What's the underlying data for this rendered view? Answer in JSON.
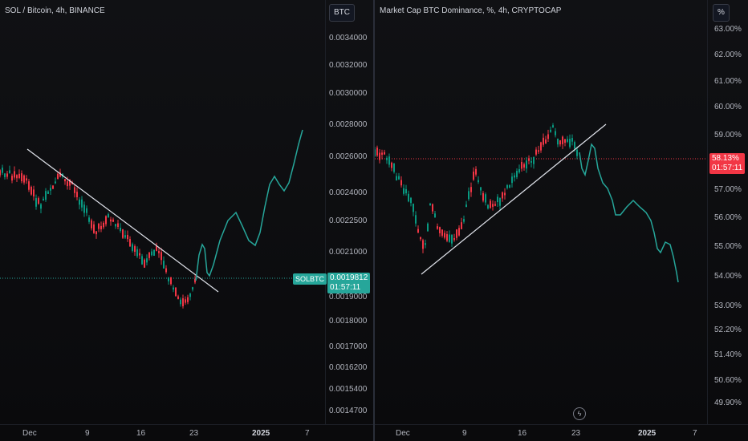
{
  "left": {
    "title": "SOL / Bitcoin, 4h, BINANCE",
    "unit": "BTC",
    "price_labels": [
      "0.0034000",
      "0.0032000",
      "0.0030000",
      "0.0028000",
      "0.0026000",
      "0.0024000",
      "0.0022500",
      "0.0021000",
      "0.0019000",
      "0.0018000",
      "0.0017000",
      "0.0016200",
      "0.0015400",
      "0.0014700"
    ],
    "symbol_tag": "SOLBTC",
    "current_price": "0.0019812",
    "countdown": "01:57:11",
    "time_ticks": [
      "Dec",
      "9",
      "16",
      "23",
      "2025",
      "7"
    ],
    "colors": {
      "up": "#089981",
      "down": "#f23645",
      "projection": "#26a69a",
      "tag": "#26a69a"
    }
  },
  "right": {
    "title": "Market Cap BTC Dominance, %, 4h, CRYPTOCAP",
    "unit": "%",
    "price_labels": [
      "63.00%",
      "62.00%",
      "61.00%",
      "60.00%",
      "59.00%",
      "58.00%",
      "57.00%",
      "56.00%",
      "55.00%",
      "54.00%",
      "53.00%",
      "52.20%",
      "51.40%",
      "50.60%",
      "49.90%"
    ],
    "current_price": "58.13%",
    "countdown": "01:57:11",
    "time_ticks": [
      "Dec",
      "9",
      "16",
      "23",
      "2025",
      "7"
    ],
    "colors": {
      "up": "#089981",
      "down": "#f23645",
      "projection": "#26a69a",
      "tag": "#f23645"
    }
  }
}
